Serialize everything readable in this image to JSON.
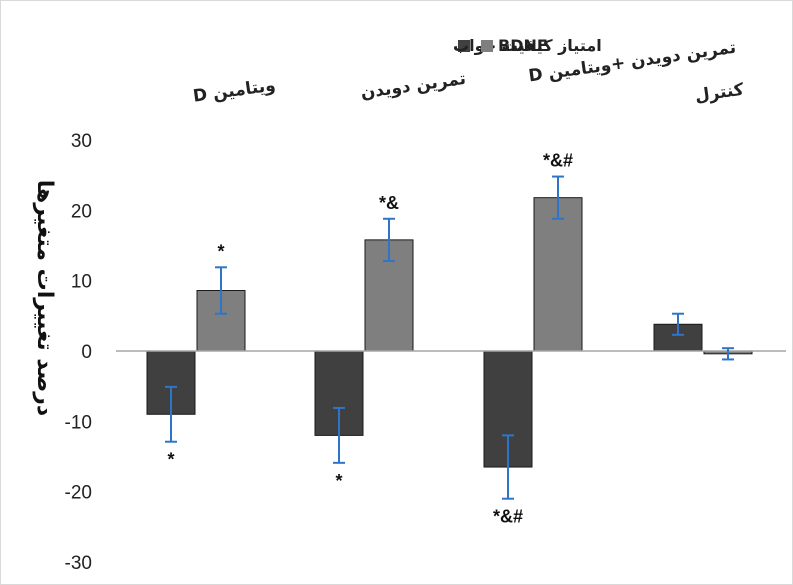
{
  "chart_data": {
    "type": "bar",
    "categories": [
      "ویتامین D",
      "تمرین دویدن",
      "تمرین دویدن +ویتامین D",
      "کنترل"
    ],
    "series": [
      {
        "name": "امتیاز کیفیت خواب",
        "color": "#404040",
        "values": [
          -9,
          -12,
          -16.5,
          3.8
        ],
        "errors": [
          3.9,
          3.9,
          4.5,
          1.5
        ],
        "annotations": [
          "*",
          "*",
          "*&#",
          ""
        ]
      },
      {
        "name": "BDNF",
        "color": "#7f7f7f",
        "values": [
          8.6,
          15.8,
          21.8,
          -0.4
        ],
        "errors": [
          3.3,
          3.0,
          3.0,
          0.8
        ],
        "annotations": [
          "*",
          "*&",
          "*&#",
          ""
        ]
      }
    ],
    "ylabel": "درصد تغییرات متغیرها",
    "ylim": [
      -30,
      30
    ],
    "yticks": [
      30,
      20,
      10,
      0,
      -10,
      -20,
      -30
    ],
    "error_bar_color": "#2e75c9",
    "grid": false,
    "legend_position": "top"
  }
}
